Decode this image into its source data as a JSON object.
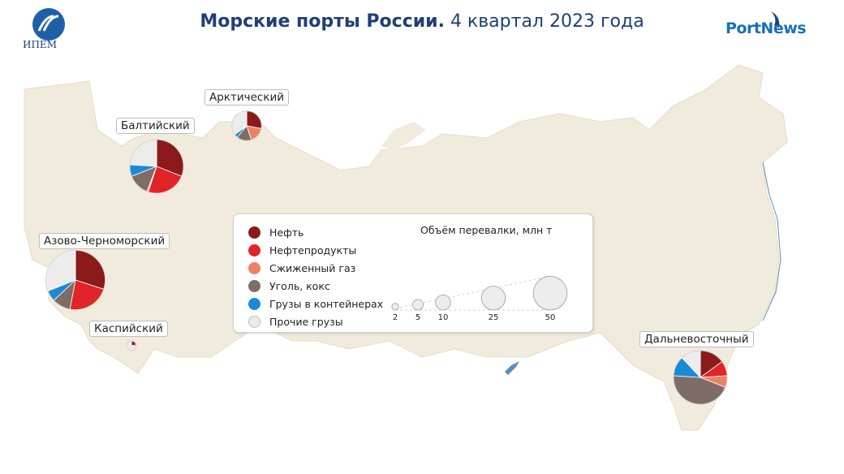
{
  "header": {
    "title_bold": "Морские порты России.",
    "title_rest": "4 квартал 2023 года",
    "logo_left_text": "ИПЕМ",
    "logo_right_text": "PortNews"
  },
  "colors": {
    "oil": "#8b1a1a",
    "oil_products": "#e02428",
    "lng": "#ef8068",
    "coal": "#7d6d66",
    "containers": "#1b8ad6",
    "other": "#ececec",
    "land": "#f1ebdd",
    "border": "#ffffff",
    "water": "#5a8fc4",
    "title": "#1f3f78"
  },
  "chart_data": {
    "type": "pie",
    "categories": [
      "Нефть",
      "Нефтепродукты",
      "Сжиженный газ",
      "Уголь, кокс",
      "Грузы в контейнерах",
      "Прочие грузы"
    ],
    "category_colors": [
      "#8b1a1a",
      "#e02428",
      "#ef8068",
      "#7d6d66",
      "#1b8ad6",
      "#ececec"
    ],
    "size_legend": {
      "title": "Объём перевалки, млн т",
      "values": [
        2,
        5,
        10,
        25,
        50
      ]
    },
    "ports": [
      {
        "name": "Арктический",
        "total": 19,
        "shares": [
          0.28,
          0.0,
          0.17,
          0.16,
          0.04,
          0.35
        ]
      },
      {
        "name": "Балтийский",
        "total": 62,
        "shares": [
          0.31,
          0.24,
          0.01,
          0.13,
          0.07,
          0.24
        ]
      },
      {
        "name": "Азово-Черноморский",
        "total": 76,
        "shares": [
          0.3,
          0.23,
          0.0,
          0.1,
          0.06,
          0.31
        ]
      },
      {
        "name": "Каспийский",
        "total": 2,
        "shares": [
          0.22,
          0.05,
          0.0,
          0.0,
          0.0,
          0.73
        ]
      },
      {
        "name": "Дальневосточный",
        "total": 62,
        "shares": [
          0.15,
          0.09,
          0.07,
          0.45,
          0.12,
          0.12
        ]
      }
    ]
  }
}
